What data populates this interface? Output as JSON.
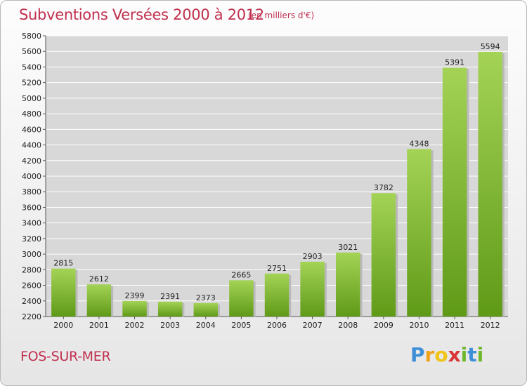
{
  "chart_data": {
    "type": "bar",
    "title": "Subventions Versées 2000 à 2012",
    "unit_note": "(en milliers d'€)",
    "categories": [
      "2000",
      "2001",
      "2002",
      "2003",
      "2004",
      "2005",
      "2006",
      "2007",
      "2008",
      "2009",
      "2010",
      "2011",
      "2012"
    ],
    "values": [
      2815,
      2612,
      2399,
      2391,
      2373,
      2665,
      2751,
      2903,
      3021,
      3782,
      4348,
      5391,
      5594
    ],
    "ylim": [
      2200,
      5800
    ],
    "yticks": [
      2200,
      2400,
      2600,
      2800,
      3000,
      3200,
      3400,
      3600,
      3800,
      4000,
      4200,
      4400,
      4600,
      4800,
      5000,
      5200,
      5400,
      5600,
      5800
    ],
    "grid": true,
    "bar_color_top": "#a4d356",
    "bar_color_bottom": "#5f9a17"
  },
  "footer": {
    "place": "FOS-SUR-MER",
    "logo_letters": [
      "P",
      "r",
      "o",
      "x",
      "i",
      "t",
      "i"
    ],
    "logo_colors": [
      "#3f8fd8",
      "#f0a21a",
      "#f0c419",
      "#d83535",
      "#6fb82e",
      "#3f8fd8",
      "#6fb82e"
    ]
  },
  "colors": {
    "title": "#c0304e",
    "grid": "#ffffff",
    "plot_bg": "#d8d8d8"
  }
}
